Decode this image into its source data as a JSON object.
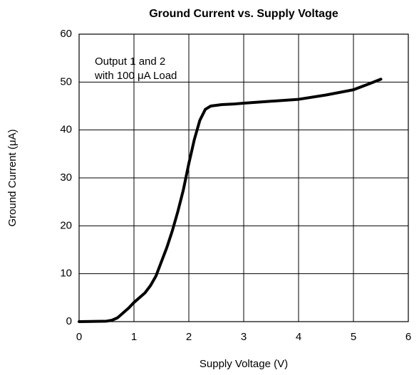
{
  "chart_data": {
    "type": "line",
    "title": "Ground Current vs. Supply Voltage",
    "xlabel": "Supply Voltage (V)",
    "ylabel": "Ground Current (μA)",
    "annotations": [
      "Output 1 and 2",
      "with 100 μA Load"
    ],
    "x": [
      0,
      0.5,
      0.6,
      0.7,
      0.8,
      0.9,
      1.0,
      1.2,
      1.3,
      1.4,
      1.5,
      1.6,
      1.7,
      1.8,
      1.9,
      2.0,
      2.1,
      2.2,
      2.3,
      2.4,
      2.6,
      2.8,
      3.0,
      3.5,
      4.0,
      4.5,
      5.0,
      5.3,
      5.5
    ],
    "series": [
      {
        "name": "Ground Current",
        "color": "#000000",
        "values": [
          0,
          0.1,
          0.3,
          0.8,
          1.8,
          2.8,
          4,
          6,
          7.5,
          9.5,
          12.5,
          15.5,
          19,
          23,
          27.5,
          33,
          38,
          42,
          44.3,
          45,
          45.3,
          45.4,
          45.6,
          46,
          46.4,
          47.3,
          48.4,
          49.7,
          50.6
        ]
      }
    ],
    "xlim": [
      0,
      6
    ],
    "xticks": [
      0,
      1,
      2,
      3,
      4,
      5,
      6
    ],
    "ylim": [
      0,
      60
    ],
    "yticks": [
      0,
      10,
      20,
      30,
      40,
      50,
      60
    ],
    "grid": true
  }
}
